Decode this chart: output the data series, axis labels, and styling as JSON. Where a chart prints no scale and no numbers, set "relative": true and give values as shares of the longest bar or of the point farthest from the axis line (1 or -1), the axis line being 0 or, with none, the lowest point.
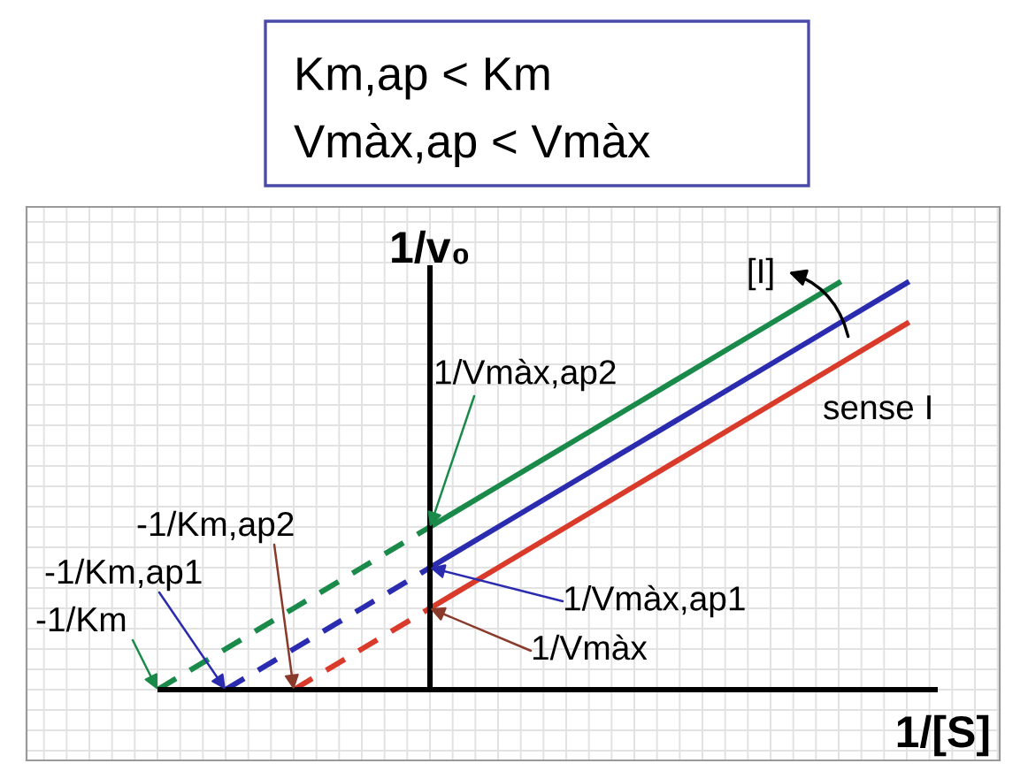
{
  "chart_data": {
    "type": "line",
    "title": "Km,ap < Km",
    "subtitle": "Vmàx,ap < Vmàx",
    "xlabel": "1/[S]",
    "ylabel": "1/v₀",
    "relative": true,
    "grid": true,
    "legend": false,
    "marker": "none",
    "categories": [
      null,
      null,
      null,
      null,
      null,
      null,
      null,
      null,
      null,
      null,
      null,
      null
    ],
    "series": [
      {
        "color": "#1a8a4a",
        "line_style": "dashed",
        "values": [
          0,
          0.1,
          0.2,
          0.3,
          0.4,
          null,
          null,
          null,
          null,
          null,
          null,
          null
        ]
      },
      {
        "color": "#1a8a4a",
        "line_style": "solid",
        "values": [
          null,
          null,
          null,
          null,
          0.4,
          0.5,
          0.6,
          0.7,
          0.8,
          0.9,
          1.0,
          null
        ]
      },
      {
        "color": "#2b2bb0",
        "line_style": "dashed",
        "values": [
          null,
          0,
          0.1,
          0.2,
          0.3,
          null,
          null,
          null,
          null,
          null,
          null,
          null
        ]
      },
      {
        "color": "#2b2bb0",
        "line_style": "solid",
        "values": [
          null,
          null,
          null,
          null,
          0.3,
          0.4,
          0.5,
          0.6,
          0.7,
          0.8,
          0.9,
          1.0
        ]
      },
      {
        "color": "#d93a2a",
        "line_style": "dashed",
        "values": [
          null,
          null,
          0,
          0.1,
          0.2,
          null,
          null,
          null,
          null,
          null,
          null,
          null
        ]
      },
      {
        "color": "#d93a2a",
        "line_style": "solid",
        "values": [
          null,
          null,
          null,
          null,
          0.2,
          0.3,
          0.4,
          0.5,
          0.6,
          0.7,
          0.8,
          0.9
        ]
      }
    ],
    "annotations": [
      "1/Vmàx,ap2",
      "1/Vmàx,ap1",
      "1/Vmàx",
      "-1/Km,ap2",
      "-1/Km,ap1",
      "-1/Km",
      "[I]",
      "sense I"
    ]
  }
}
